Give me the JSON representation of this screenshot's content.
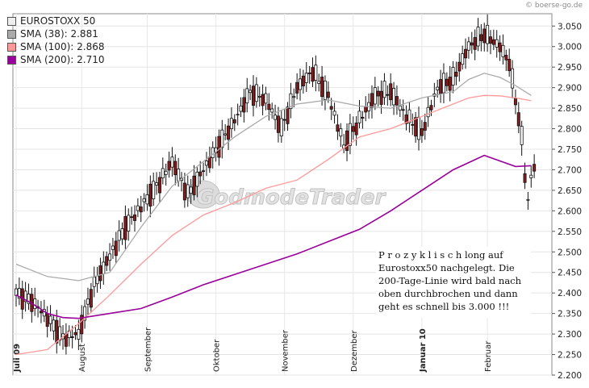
{
  "credit": "© boerse-go.de",
  "watermark": "GodmodeTrader",
  "annotation": {
    "lines": [
      "P r o z y k l i s c h long auf",
      "Eurostoxx50 nachgelegt. Die",
      "200-Tage-Linie wird bald nach",
      "oben durchbrochen und dann",
      "geht es schnell bis 3.000 !!!"
    ]
  },
  "legend": [
    {
      "label": "EUROSTOXX 50",
      "color": "#eeeeee"
    },
    {
      "label": "SMA (38): 2.881",
      "color": "#aaaaaa"
    },
    {
      "label": "SMA (100): 2.868",
      "color": "#ff9999"
    },
    {
      "label": "SMA (200): 2.710",
      "color": "#990099"
    }
  ],
  "chart_data": {
    "type": "line",
    "title": "EUROSTOXX 50",
    "candles": "daily OHLC candlesticks, white = up day, dark red = down day",
    "ylim": [
      2200,
      3080
    ],
    "y_ticks": [
      "3.050",
      "3.000",
      "2.950",
      "2.900",
      "2.850",
      "2.800",
      "2.750",
      "2.700",
      "2.650",
      "2.600",
      "2.550",
      "2.500",
      "2.450",
      "2.400",
      "2.350",
      "2.300",
      "2.250",
      "2.200"
    ],
    "x_labels": [
      {
        "label": "Juli 09",
        "bold": true
      },
      {
        "label": "August",
        "bold": false
      },
      {
        "label": "September",
        "bold": false
      },
      {
        "label": "Oktober",
        "bold": false
      },
      {
        "label": "November",
        "bold": false
      },
      {
        "label": "Dezember",
        "bold": false
      },
      {
        "label": "Januar 10",
        "bold": true
      },
      {
        "label": "Februar",
        "bold": false
      }
    ],
    "series": [
      {
        "name": "EUROSTOXX 50",
        "color": "#000000",
        "x": [
          0,
          5,
          10,
          15,
          20,
          22,
          25,
          30,
          35,
          40,
          45,
          50,
          55,
          60,
          65,
          70,
          75,
          80,
          85,
          90,
          95,
          100,
          105,
          110,
          115,
          120,
          125,
          130,
          135,
          140,
          145,
          150,
          155
        ],
        "values": [
          2400,
          2380,
          2340,
          2290,
          2300,
          2350,
          2420,
          2490,
          2560,
          2610,
          2660,
          2720,
          2640,
          2700,
          2760,
          2820,
          2890,
          2870,
          2800,
          2900,
          2940,
          2880,
          2760,
          2820,
          2880,
          2890,
          2830,
          2790,
          2900,
          2920,
          3000,
          3030,
          3000
        ]
      },
      {
        "name": "SMA (38)",
        "color": "#aaaaaa",
        "x": [
          0,
          10,
          20,
          30,
          40,
          50,
          60,
          70,
          80,
          90,
          100,
          110,
          120,
          130,
          140,
          145,
          150,
          155,
          160,
          165
        ],
        "values": [
          2470,
          2440,
          2430,
          2450,
          2560,
          2660,
          2720,
          2780,
          2830,
          2860,
          2870,
          2855,
          2850,
          2875,
          2890,
          2920,
          2935,
          2925,
          2905,
          2881
        ]
      },
      {
        "name": "SMA (100)",
        "color": "#ff9999",
        "x": [
          0,
          10,
          20,
          30,
          40,
          50,
          60,
          70,
          80,
          90,
          100,
          110,
          120,
          130,
          140,
          145,
          150,
          155,
          160,
          165
        ],
        "values": [
          2250,
          2262,
          2325,
          2395,
          2470,
          2540,
          2590,
          2620,
          2655,
          2675,
          2725,
          2780,
          2800,
          2830,
          2860,
          2875,
          2881,
          2880,
          2875,
          2868
        ]
      },
      {
        "name": "SMA (200)",
        "color": "#990099",
        "x": [
          0,
          5,
          10,
          15,
          20,
          30,
          40,
          50,
          60,
          70,
          80,
          90,
          100,
          110,
          120,
          130,
          140,
          150,
          160,
          165
        ],
        "values": [
          2395,
          2375,
          2350,
          2340,
          2338,
          2350,
          2362,
          2390,
          2420,
          2445,
          2470,
          2495,
          2525,
          2555,
          2600,
          2650,
          2700,
          2735,
          2708,
          2710
        ]
      }
    ]
  }
}
